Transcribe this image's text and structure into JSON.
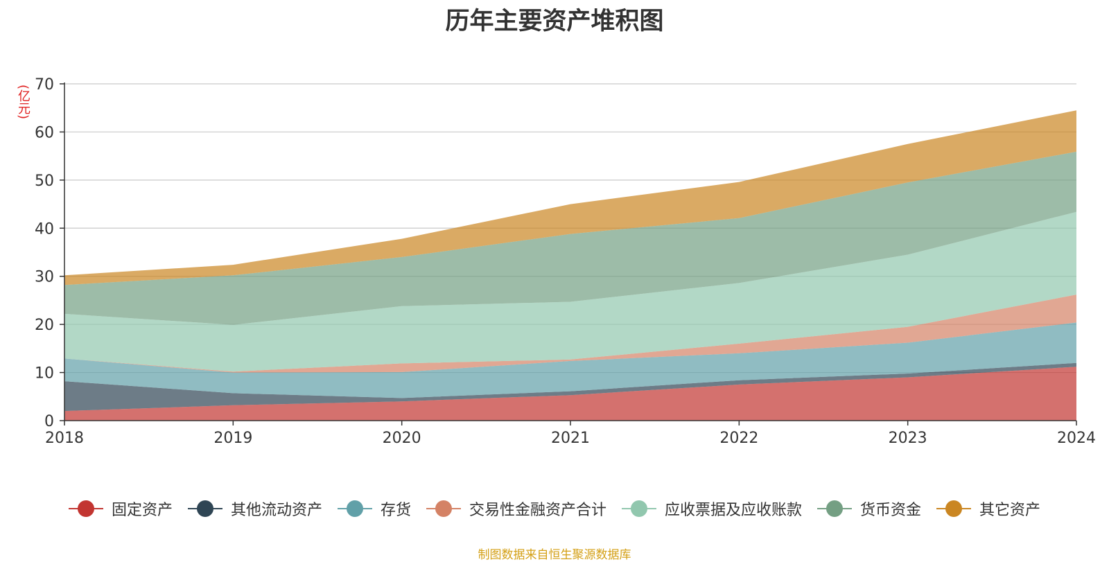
{
  "title": "历年主要资产堆积图",
  "unit": "(亿元)",
  "source_note": "制图数据来自恒生聚源数据库",
  "chart_data": {
    "type": "area",
    "stacked": true,
    "x": [
      "2018",
      "2019",
      "2020",
      "2021",
      "2022",
      "2023",
      "2024"
    ],
    "ylim": [
      0,
      70
    ],
    "yticks": [
      0,
      10,
      20,
      30,
      40,
      50,
      60,
      70
    ],
    "grid": true,
    "legend_position": "bottom",
    "series": [
      {
        "name": "固定资产",
        "color": "#c23531",
        "values": [
          2.0,
          3.2,
          4.0,
          5.3,
          7.5,
          9.0,
          11.2
        ]
      },
      {
        "name": "其他流动资产",
        "color": "#2f4554",
        "values": [
          6.2,
          2.5,
          0.7,
          0.8,
          0.9,
          0.8,
          0.8
        ]
      },
      {
        "name": "存货",
        "color": "#61a0a8",
        "values": [
          4.7,
          4.3,
          5.4,
          6.3,
          5.6,
          6.4,
          8.4
        ]
      },
      {
        "name": "交易性金融资产合计",
        "color": "#d48265",
        "values": [
          0.0,
          0.2,
          1.8,
          0.3,
          2.0,
          3.3,
          5.8
        ]
      },
      {
        "name": "应收票据及应收账款",
        "color": "#91c7ae",
        "values": [
          9.3,
          9.7,
          11.9,
          12.0,
          12.6,
          15.0,
          17.2
        ]
      },
      {
        "name": "货币资金",
        "color": "#749f83",
        "values": [
          6.0,
          10.3,
          10.2,
          14.1,
          13.5,
          15.0,
          12.5
        ]
      },
      {
        "name": "其它资产",
        "color": "#ca8622",
        "values": [
          2.0,
          2.2,
          3.8,
          6.2,
          7.5,
          8.0,
          8.6
        ]
      }
    ]
  }
}
